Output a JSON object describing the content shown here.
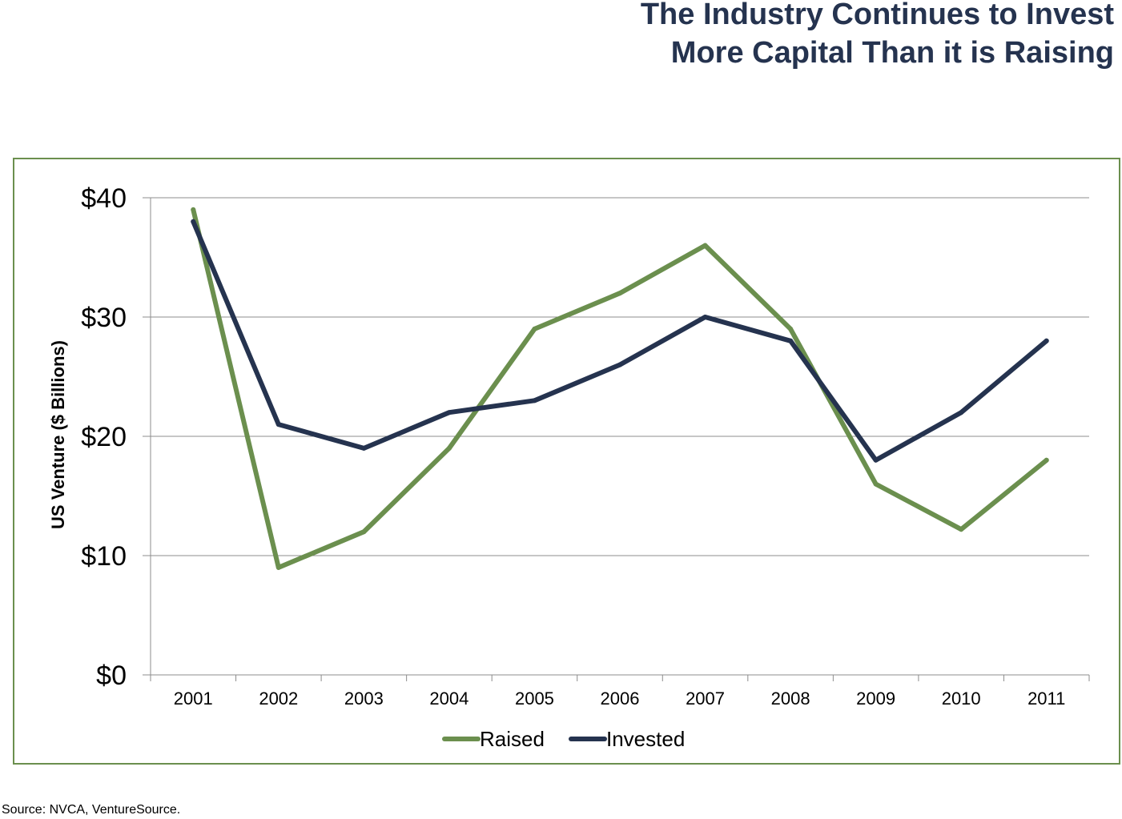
{
  "title": {
    "line1": "The Industry Continues to Invest",
    "line2": "More Capital Than it is Raising"
  },
  "source": "Source: NVCA, VentureSource.",
  "colors": {
    "title": "#25334f",
    "frame": "#6b8f4e",
    "raised": "#6b8f4e",
    "invested": "#25334f",
    "grid": "#8c8c8c"
  },
  "chart_data": {
    "type": "line",
    "title": "",
    "xlabel": "",
    "ylabel": "US Venture ($ Billions)",
    "categories": [
      "2001",
      "2002",
      "2003",
      "2004",
      "2005",
      "2006",
      "2007",
      "2008",
      "2009",
      "2010",
      "2011"
    ],
    "ylim": [
      0,
      40
    ],
    "yticks": [
      0,
      10,
      20,
      30,
      40
    ],
    "ytick_labels": [
      "$0",
      "$10",
      "$20",
      "$30",
      "$40"
    ],
    "grid": true,
    "legend": "bottom",
    "series": [
      {
        "name": "Raised",
        "color": "#6b8f4e",
        "values": [
          39,
          9,
          12,
          19,
          29,
          32,
          36,
          29,
          16,
          12.2,
          18
        ]
      },
      {
        "name": "Invested",
        "color": "#25334f",
        "values": [
          38,
          21,
          19,
          22,
          23,
          26,
          30,
          28,
          18,
          22,
          28
        ]
      }
    ]
  }
}
